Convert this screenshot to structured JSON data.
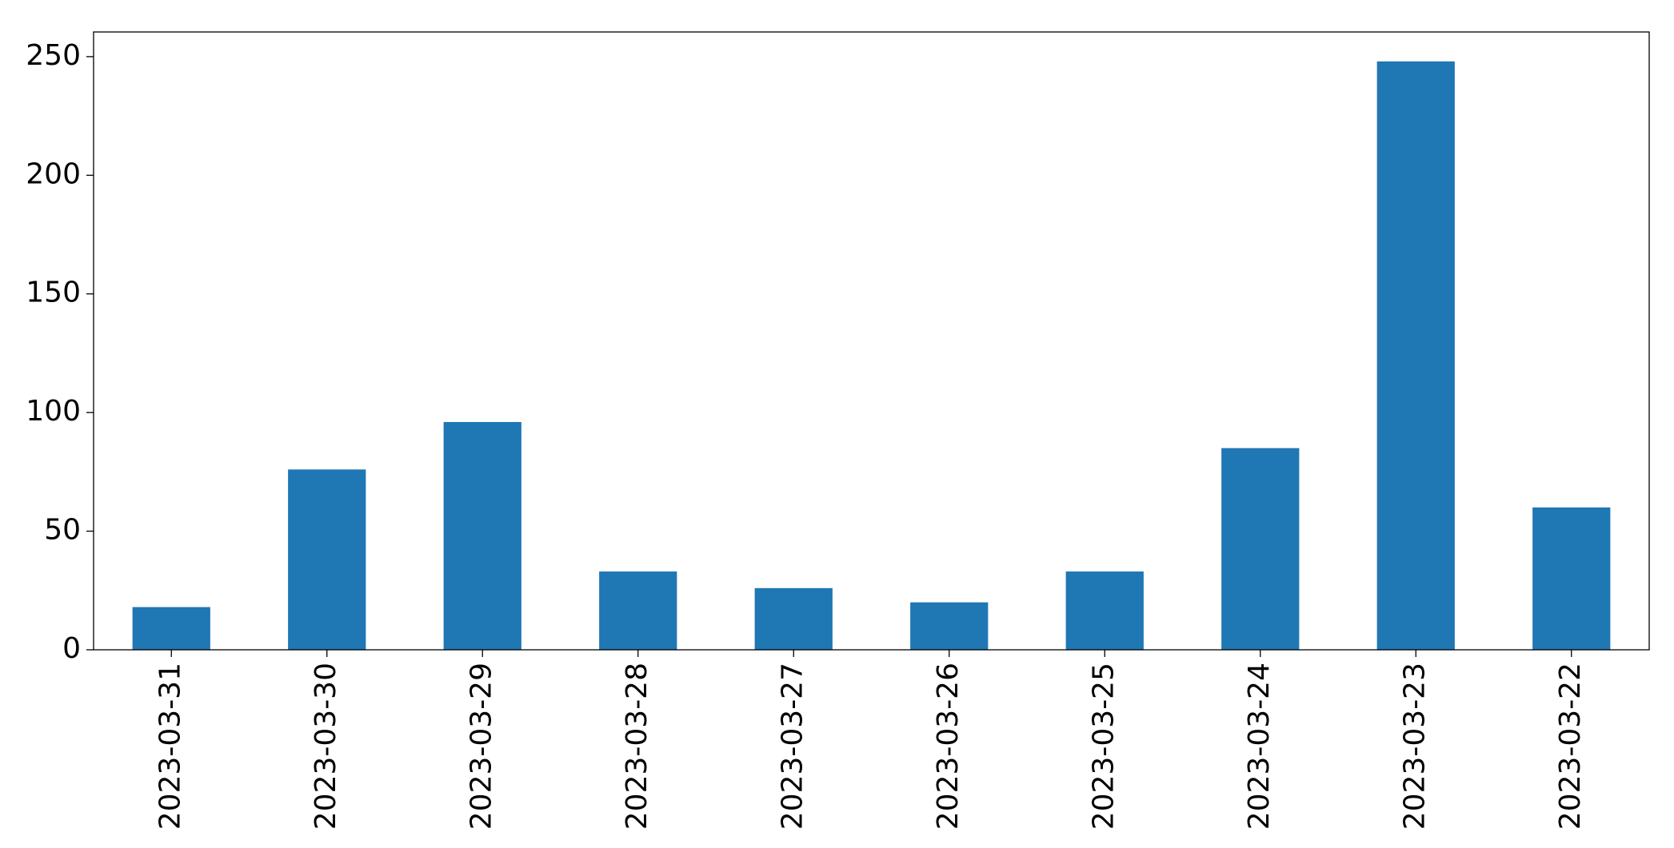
{
  "chart_data": {
    "type": "bar",
    "categories": [
      "2023-03-31",
      "2023-03-30",
      "2023-03-29",
      "2023-03-28",
      "2023-03-27",
      "2023-03-26",
      "2023-03-25",
      "2023-03-24",
      "2023-03-23",
      "2023-03-22"
    ],
    "values": [
      18,
      76,
      96,
      33,
      26,
      20,
      33,
      85,
      248,
      60
    ],
    "color": "#1f77b4",
    "ylim": [
      0,
      260.4
    ],
    "yticks": [
      0,
      50,
      100,
      150,
      200,
      250
    ],
    "grid": false
  }
}
